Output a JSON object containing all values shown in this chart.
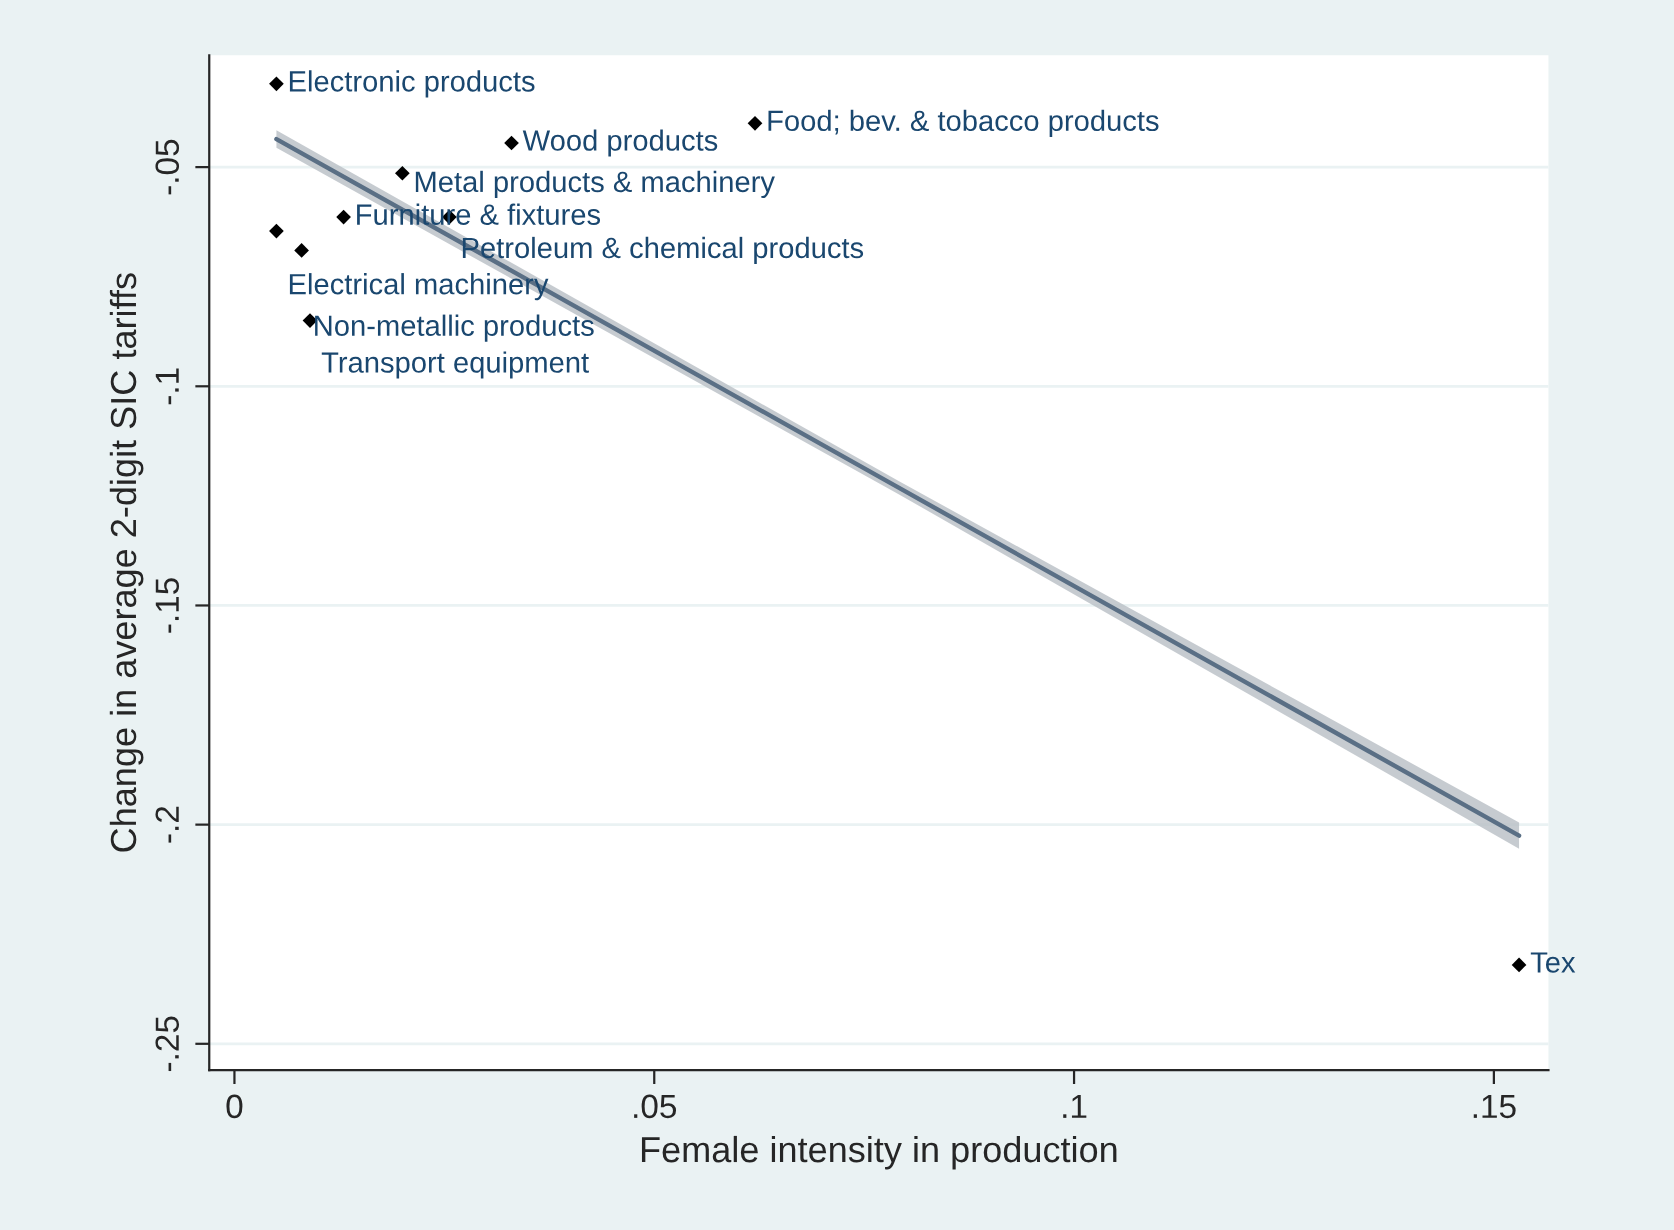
{
  "chart_data": {
    "type": "scatter",
    "xlabel": "Female intensity in production",
    "ylabel": "Change in average 2-digit SIC tariffs",
    "xlim": [
      -0.003,
      0.1565
    ],
    "ylim": [
      -0.256,
      -0.0245
    ],
    "xticks": [
      0,
      {
        "value": 0.05,
        "label": ".05"
      },
      {
        "value": 0.1,
        "label": ".1"
      },
      {
        "value": 0.15,
        "label": ".15"
      }
    ],
    "yticks": [
      {
        "value": -0.05,
        "label": "-.05"
      },
      {
        "value": -0.1,
        "label": "-.1"
      },
      {
        "value": -0.15,
        "label": "-.15"
      },
      {
        "value": -0.2,
        "label": "-.2"
      },
      {
        "value": -0.25,
        "label": "-.25"
      }
    ],
    "grid": "y",
    "legend": false,
    "series": [
      {
        "marker": "diamond",
        "color": "#000000",
        "x": [
          0.005,
          0.062,
          0.033,
          0.02,
          0.013,
          0.0256,
          0.005,
          0.008,
          0.009,
          0.153
        ],
        "values": [
          -0.031,
          -0.04,
          -0.0445,
          -0.0514,
          -0.0614,
          -0.0614,
          -0.0646,
          -0.069,
          -0.085,
          -0.232
        ]
      },
      {
        "type": "line",
        "color": "#5a6f85",
        "x": [
          0.005,
          0.079,
          0.153
        ],
        "values": [
          -0.0436,
          -0.123,
          -0.2025
        ],
        "lower": [
          -0.0456,
          -0.1245,
          -0.2055
        ],
        "upper": [
          -0.0416,
          -0.1215,
          -0.1995
        ]
      }
    ],
    "annotations": [
      {
        "text": "Electronic products",
        "x": 0.005,
        "y": -0.031
      },
      {
        "text": "Food; bev. & tobacco products",
        "x": 0.062,
        "y": -0.04
      },
      {
        "text": "Wood products",
        "x": 0.033,
        "y": -0.0445
      },
      {
        "text": "Metal products & machinery",
        "x": 0.02,
        "y": -0.0514
      },
      {
        "text": "Furniture & fixtures",
        "x": 0.013,
        "y": -0.0614
      },
      {
        "text": "Petroleum & chemical products",
        "x": 0.0256,
        "y": -0.0614
      },
      {
        "text": "Electrical machinery",
        "x": 0.005,
        "y": -0.0646
      },
      {
        "text": "Non-metallic products",
        "x": 0.008,
        "y": -0.069
      },
      {
        "text": "Transport equipment",
        "x": 0.009,
        "y": -0.085
      },
      {
        "text": "Tex",
        "x": 0.153,
        "y": -0.232
      }
    ]
  }
}
